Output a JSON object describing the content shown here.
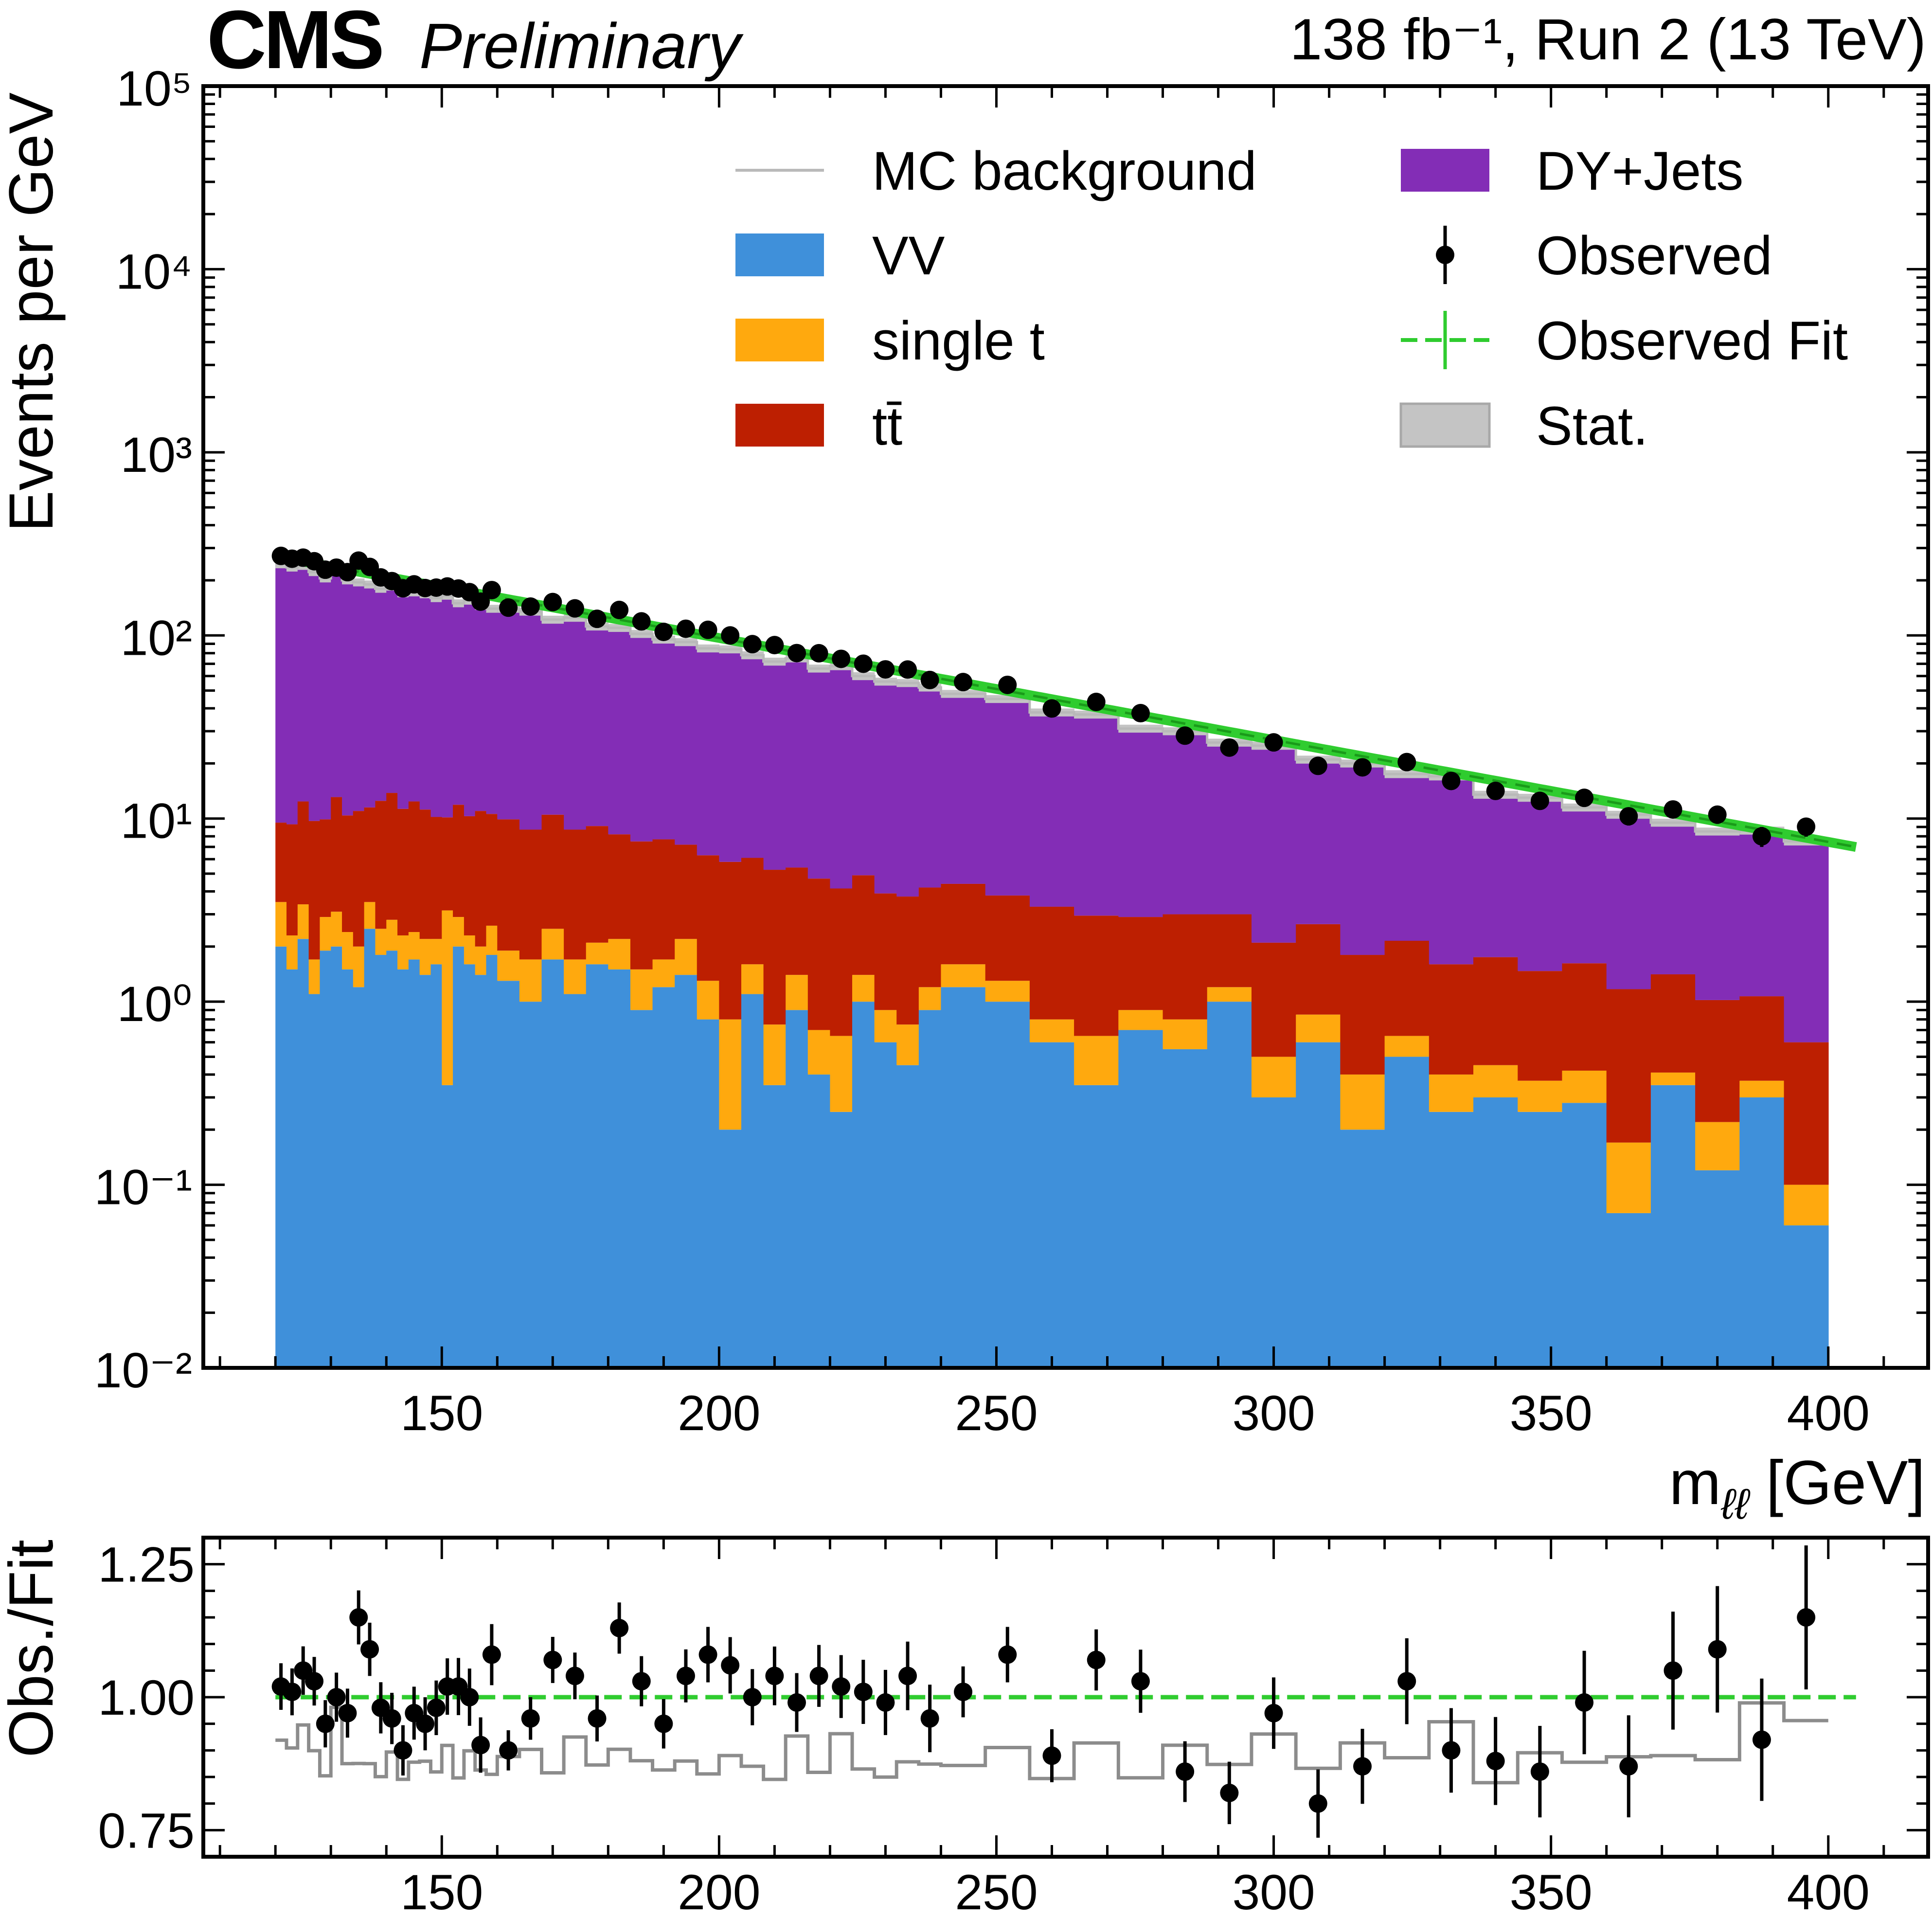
{
  "header": {
    "experiment": "CMS",
    "status": "Preliminary",
    "lumi": "138 fb⁻¹, Run 2 (13 TeV)"
  },
  "colors": {
    "vv": "#3f90da",
    "single_t": "#ffa90e",
    "ttbar": "#bd1f01",
    "dy": "#832db6",
    "fit": "#2fcc2f",
    "mc_line": "#b9b9b9",
    "stat": "#c4c4c4",
    "observed": "#000000",
    "ratio_mc": "#8c8c8c"
  },
  "chart_data": [
    {
      "type": "bar",
      "stacked": true,
      "title": "",
      "xlabel": "m_ℓℓ [GeV]",
      "xlabel_main": "m",
      "xlabel_sub": "ℓℓ",
      "xlabel_unit": " [GeV]",
      "ylabel": "Events per GeV",
      "xlim": [
        107,
        418
      ],
      "ylim": [
        0.01,
        100000
      ],
      "yscale": "log",
      "x_ticks": [
        "150",
        "200",
        "250",
        "300",
        "350",
        "400"
      ],
      "x_tick_values": [
        150,
        200,
        250,
        300,
        350,
        400
      ],
      "y_ticks": [
        "10⁵",
        "10⁴",
        "10³",
        "10²",
        "10¹",
        "10⁰",
        "10⁻¹",
        "10⁻²"
      ],
      "y_tick_exponents": [
        5,
        4,
        3,
        2,
        1,
        0,
        -1,
        -2
      ],
      "legend_position": "top-right",
      "legend": [
        {
          "key": "mc",
          "label": "MC background"
        },
        {
          "key": "dy",
          "label": "DY+Jets"
        },
        {
          "key": "vv",
          "label": "VV"
        },
        {
          "key": "obs",
          "label": "Observed"
        },
        {
          "key": "st",
          "label": "single t"
        },
        {
          "key": "fit",
          "label": "Observed Fit"
        },
        {
          "key": "tt",
          "label": "tt̄"
        },
        {
          "key": "stat",
          "label": "Stat."
        }
      ],
      "bin_edges": [
        120,
        122,
        124,
        126,
        128,
        130,
        132,
        134,
        136,
        138,
        140,
        142,
        144,
        146,
        148,
        150,
        152,
        154,
        156,
        158,
        160,
        164,
        168,
        172,
        176,
        180,
        184,
        188,
        192,
        196,
        200,
        204,
        208,
        212,
        216,
        220,
        224,
        228,
        232,
        236,
        240,
        248,
        256,
        264,
        272,
        280,
        288,
        296,
        304,
        312,
        320,
        328,
        336,
        344,
        352,
        360,
        368,
        376,
        384,
        392,
        400
      ],
      "series": [
        {
          "name": "VV",
          "values": [
            2.0,
            1.5,
            2.2,
            1.1,
            1.9,
            2.0,
            1.5,
            1.2,
            2.5,
            1.8,
            1.9,
            1.5,
            1.7,
            1.4,
            1.6,
            0.35,
            2.0,
            1.6,
            1.4,
            1.8,
            1.3,
            1.0,
            1.7,
            1.1,
            1.6,
            1.5,
            0.9,
            1.2,
            1.4,
            0.8,
            0.2,
            1.1,
            0.35,
            0.9,
            0.4,
            0.25,
            1.0,
            0.6,
            0.45,
            0.9,
            1.2,
            1.0,
            0.6,
            0.35,
            0.7,
            0.55,
            1.0,
            0.3,
            0.6,
            0.2,
            0.5,
            0.25,
            0.3,
            0.25,
            0.28,
            0.07,
            0.35,
            0.12,
            0.3,
            0.06
          ]
        },
        {
          "name": "single t",
          "values": [
            1.5,
            0.8,
            1.2,
            0.6,
            1.0,
            1.1,
            0.9,
            0.8,
            1.0,
            0.7,
            0.9,
            0.8,
            0.7,
            0.8,
            0.6,
            2.8,
            0.9,
            0.7,
            0.6,
            0.8,
            0.6,
            0.7,
            0.8,
            0.6,
            0.5,
            0.7,
            0.6,
            0.5,
            0.8,
            0.5,
            0.6,
            0.5,
            0.4,
            0.5,
            0.3,
            0.4,
            0.4,
            0.3,
            0.3,
            0.3,
            0.4,
            0.3,
            0.2,
            0.3,
            0.2,
            0.25,
            0.2,
            0.2,
            0.25,
            0.2,
            0.15,
            0.15,
            0.15,
            0.12,
            0.14,
            0.1,
            0.06,
            0.1,
            0.07,
            0.04
          ]
        },
        {
          "name": "tt̄",
          "values": [
            6,
            7,
            9,
            8,
            7,
            10,
            8,
            9,
            8,
            10,
            11,
            9,
            10,
            9,
            8,
            7,
            9,
            8,
            9,
            8,
            8,
            7,
            8,
            7,
            7,
            6,
            6,
            6,
            5,
            5,
            5,
            4.5,
            4.5,
            4,
            4,
            3.5,
            3.5,
            3,
            3,
            3,
            2.8,
            2.5,
            2.5,
            2.3,
            2.0,
            2.2,
            1.8,
            1.6,
            1.8,
            1.4,
            1.5,
            1.2,
            1.3,
            1.1,
            1.2,
            1.0,
            1.0,
            0.8,
            0.7,
            0.5
          ]
        },
        {
          "name": "MC background total",
          "values": [
            245,
            235,
            240,
            222,
            205,
            230,
            200,
            195,
            190,
            180,
            185,
            170,
            172,
            168,
            160,
            165,
            150,
            155,
            145,
            140,
            140,
            135,
            122,
            125,
            112,
            110,
            102,
            95,
            92,
            85,
            84,
            78,
            72,
            75,
            66,
            68,
            60,
            56,
            55,
            52,
            48,
            45,
            38,
            37,
            31,
            30,
            26,
            25,
            21,
            20,
            17.5,
            17,
            13.5,
            13,
            11.5,
            10.5,
            9.5,
            8.5,
            8.6,
            7.5
          ]
        }
      ],
      "fit": {
        "form": "A*exp(-(x-120)/tau)",
        "A": 270,
        "tau": 78,
        "x_range": [
          120,
          405
        ]
      }
    },
    {
      "type": "scatter",
      "ylabel": "Obs./Fit",
      "xlim": [
        107,
        418
      ],
      "ylim": [
        0.7,
        1.3
      ],
      "x_ticks": [
        "150",
        "200",
        "250",
        "300",
        "350",
        "400"
      ],
      "x_tick_values": [
        150,
        200,
        250,
        300,
        350,
        400
      ],
      "y_ticks": [
        "1.25",
        "1.00",
        "0.75"
      ],
      "y_tick_values": [
        1.25,
        1.0,
        0.75
      ],
      "observed_over_fit": [
        1.02,
        1.01,
        1.05,
        1.03,
        0.95,
        1.0,
        0.97,
        1.15,
        1.09,
        0.98,
        0.96,
        0.9,
        0.97,
        0.95,
        0.98,
        1.02,
        1.02,
        1.0,
        0.91,
        1.08,
        0.9,
        0.96,
        1.07,
        1.04,
        0.96,
        1.13,
        1.03,
        0.95,
        1.04,
        1.08,
        1.06,
        1.0,
        1.04,
        0.99,
        1.04,
        1.02,
        1.01,
        0.99,
        1.04,
        0.96,
        1.01,
        1.08,
        0.89,
        1.07,
        1.03,
        0.86,
        0.82,
        0.97,
        0.8,
        0.87,
        1.03,
        0.9,
        0.88,
        0.86,
        0.99,
        0.87,
        1.05,
        1.09,
        0.92,
        1.15
      ]
    }
  ]
}
